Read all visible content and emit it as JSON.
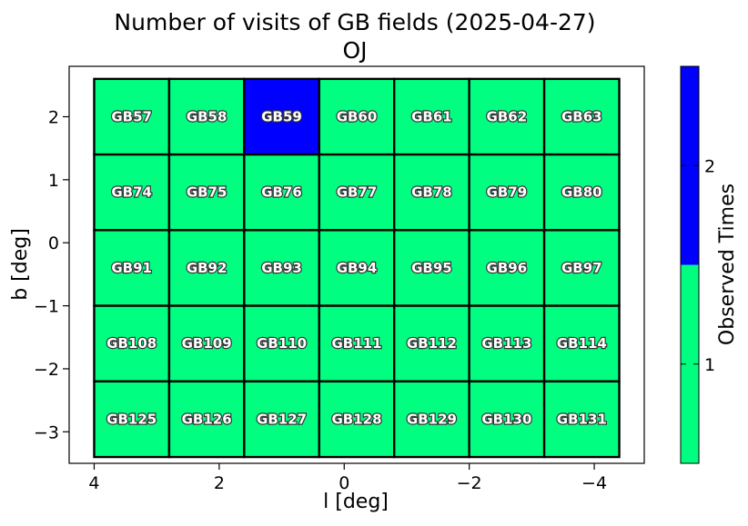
{
  "chart_data": {
    "type": "heatmap",
    "title": "Number of visits of GB fields (2025-04-27)",
    "subtitle": "OJ",
    "xlabel": "l [deg]",
    "ylabel": "b [deg]",
    "xlim": [
      4.4,
      -4.8
    ],
    "ylim": [
      -3.5,
      2.8
    ],
    "x_ticks": [
      4,
      2,
      0,
      -2,
      -4
    ],
    "x_tick_labels": [
      "4",
      "2",
      "0",
      "−2",
      "−4"
    ],
    "y_ticks": [
      2,
      1,
      0,
      -1,
      -2,
      -3
    ],
    "y_tick_labels": [
      "2",
      "1",
      "0",
      "−1",
      "−2",
      "−3"
    ],
    "grid": false,
    "columns_l": [
      3.4,
      2.2,
      1.0,
      -0.2,
      -1.4,
      -2.6,
      -3.8
    ],
    "rows_b": [
      2.0,
      0.8,
      -0.4,
      -1.6,
      -2.8
    ],
    "cell_width_deg": 1.2,
    "cell_height_deg": 1.2,
    "fields": [
      [
        "GB57",
        "GB58",
        "GB59",
        "GB60",
        "GB61",
        "GB62",
        "GB63"
      ],
      [
        "GB74",
        "GB75",
        "GB76",
        "GB77",
        "GB78",
        "GB79",
        "GB80"
      ],
      [
        "GB91",
        "GB92",
        "GB93",
        "GB94",
        "GB95",
        "GB96",
        "GB97"
      ],
      [
        "GB108",
        "GB109",
        "GB110",
        "GB111",
        "GB112",
        "GB113",
        "GB114"
      ],
      [
        "GB125",
        "GB126",
        "GB127",
        "GB128",
        "GB129",
        "GB130",
        "GB131"
      ]
    ],
    "visits": [
      [
        1,
        1,
        2,
        1,
        1,
        1,
        1
      ],
      [
        1,
        1,
        1,
        1,
        1,
        1,
        1
      ],
      [
        1,
        1,
        1,
        1,
        1,
        1,
        1
      ],
      [
        1,
        1,
        1,
        1,
        1,
        1,
        1
      ],
      [
        1,
        1,
        1,
        1,
        1,
        1,
        1
      ]
    ],
    "colorbar": {
      "label": "Observed Times",
      "range": [
        0.5,
        2.5
      ],
      "levels": [
        {
          "value": 1,
          "label": "1",
          "color": "#00ff80"
        },
        {
          "value": 2,
          "label": "2",
          "color": "#0000ff"
        }
      ]
    }
  }
}
